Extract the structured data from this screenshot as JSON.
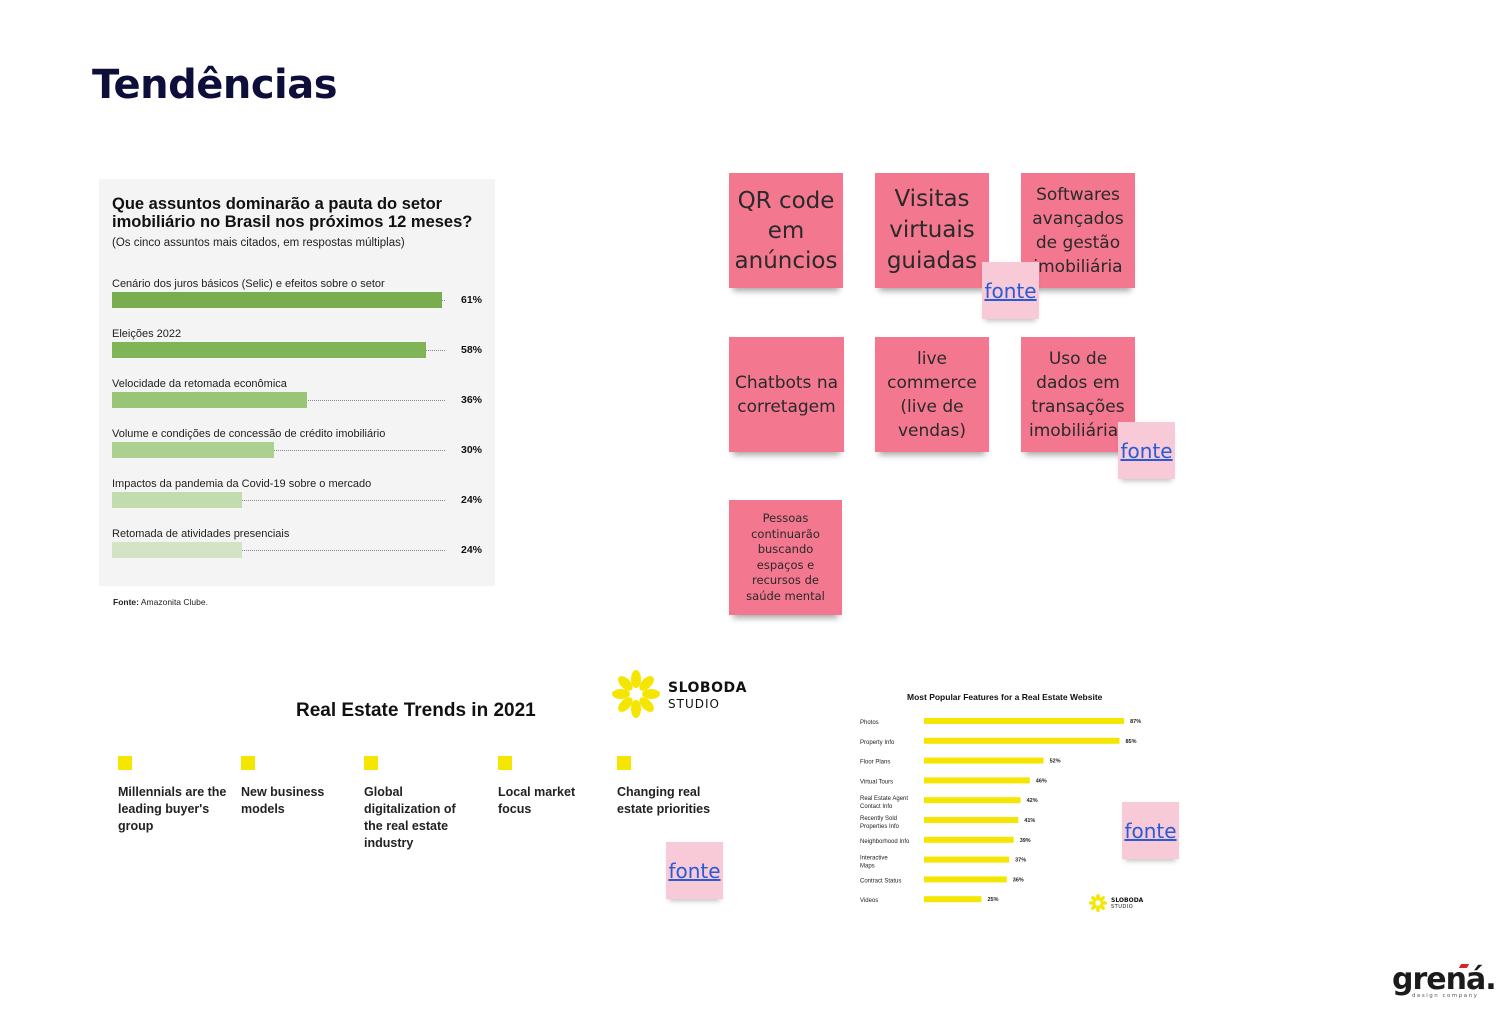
{
  "page": {
    "title": "Tendências"
  },
  "survey": {
    "title": "Que assuntos dominarão a pauta do setor imobiliário no Brasil nos próximos 12 meses?",
    "subtitle": "(Os cinco assuntos mais citados, em respostas múltiplas)",
    "source_label": "Fonte:",
    "source_text": "Amazonita Clube.",
    "colors": [
      "#78ae4f",
      "#7fb457",
      "#98c676",
      "#acd08f",
      "#c3dcaf",
      "#d3e4c4"
    ],
    "items": [
      {
        "label": "Cenário dos juros básicos (Selic) e efeitos sobre o setor",
        "value": 61,
        "value_text": "61%"
      },
      {
        "label": "Eleições 2022",
        "value": 58,
        "value_text": "58%"
      },
      {
        "label": "Velocidade da retomada econômica",
        "value": 36,
        "value_text": "36%"
      },
      {
        "label": "Volume e condições de concessão de crédito imobiliário",
        "value": 30,
        "value_text": "30%"
      },
      {
        "label": "Impactos da pandemia da Covid-19 sobre o mercado",
        "value": 24,
        "value_text": "24%"
      },
      {
        "label": "Retomada de atividades presenciais",
        "value": 24,
        "value_text": "24%"
      }
    ]
  },
  "notes": [
    {
      "text": "QR code em anúncios"
    },
    {
      "text": "Visitas virtuais guiadas"
    },
    {
      "text": "Softwares avançados de gestão imobiliária"
    },
    {
      "text": "Chatbots na corretagem"
    },
    {
      "text": "live commerce (live de vendas)"
    },
    {
      "text": "Uso de dados em transações imobiliárias"
    },
    {
      "text": "Pessoas continuarão buscando espaços e recursos de saúde mental"
    }
  ],
  "fonte_label": "fonte",
  "sloboda": {
    "line1": "SLOBODA",
    "line2": "STUDIO",
    "color": "#f4e600"
  },
  "trends": {
    "title": "Real Estate Trends in 2021",
    "items": [
      "Millennials are the leading buyer's group",
      "New business models",
      "Global digitalization of the real estate industry",
      "Local market focus",
      "Changing real estate priorities"
    ]
  },
  "features_chart_title": "Most Popular Features for a Real Estate Website",
  "chart_data": {
    "type": "bar",
    "title": "Most Popular Features for a Real Estate Website",
    "orientation": "horizontal",
    "categories": [
      "Photos",
      "Property Info",
      "Floor Plans",
      "Virtual Tours",
      "Real Estate Agent Contact Info",
      "Recently Sold Properties Info",
      "Neighborhood Info",
      "Interactive Maps",
      "Contract Status",
      "Videos"
    ],
    "values": [
      87,
      85,
      52,
      46,
      42,
      41,
      39,
      37,
      36,
      25
    ],
    "value_labels": [
      "87%",
      "85%",
      "52%",
      "46%",
      "42%",
      "41%",
      "39%",
      "37%",
      "36%",
      "25%"
    ],
    "color": "#f4e600",
    "xlim": [
      0,
      100
    ],
    "grid": false
  },
  "brand": {
    "name": "grená.",
    "tagline": "design company"
  }
}
